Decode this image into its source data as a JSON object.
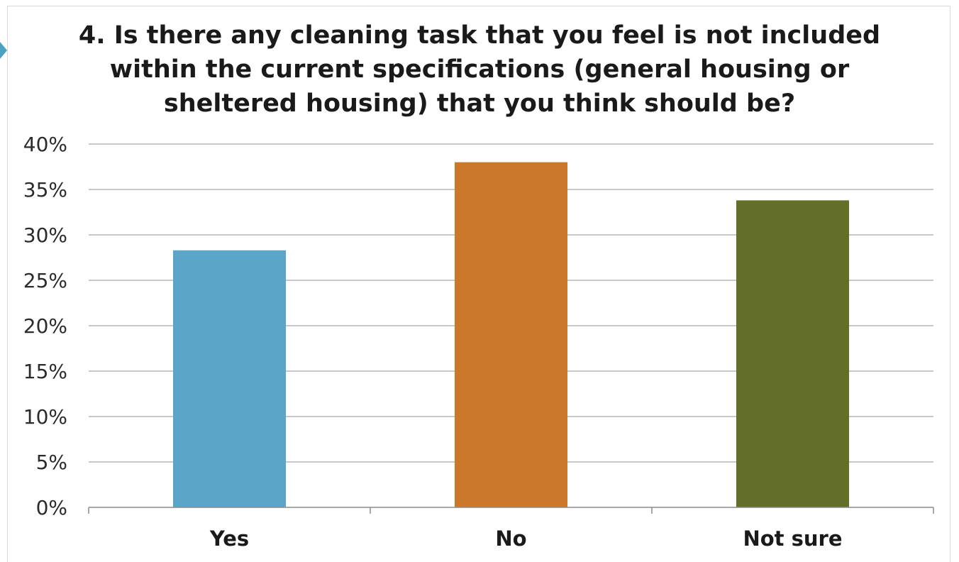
{
  "chart_data": {
    "type": "bar",
    "title": "4. Is there any cleaning task that you feel is not included\nwithin the current specifications (general housing or\nsheltered housing) that you think should be?",
    "categories": [
      "Yes",
      "No",
      "Not sure"
    ],
    "values": [
      28.3,
      38.0,
      33.8
    ],
    "colors": [
      "#5ba6c8",
      "#cc782b",
      "#636e28"
    ],
    "ylim": [
      0,
      40
    ],
    "yticks": [
      0,
      5,
      10,
      15,
      20,
      25,
      30,
      35,
      40
    ],
    "ytick_labels": [
      "0%",
      "5%",
      "10%",
      "15%",
      "20%",
      "25%",
      "30%",
      "35%",
      "40%"
    ],
    "grid": true,
    "legend": "none",
    "xlabel": "",
    "ylabel": ""
  }
}
